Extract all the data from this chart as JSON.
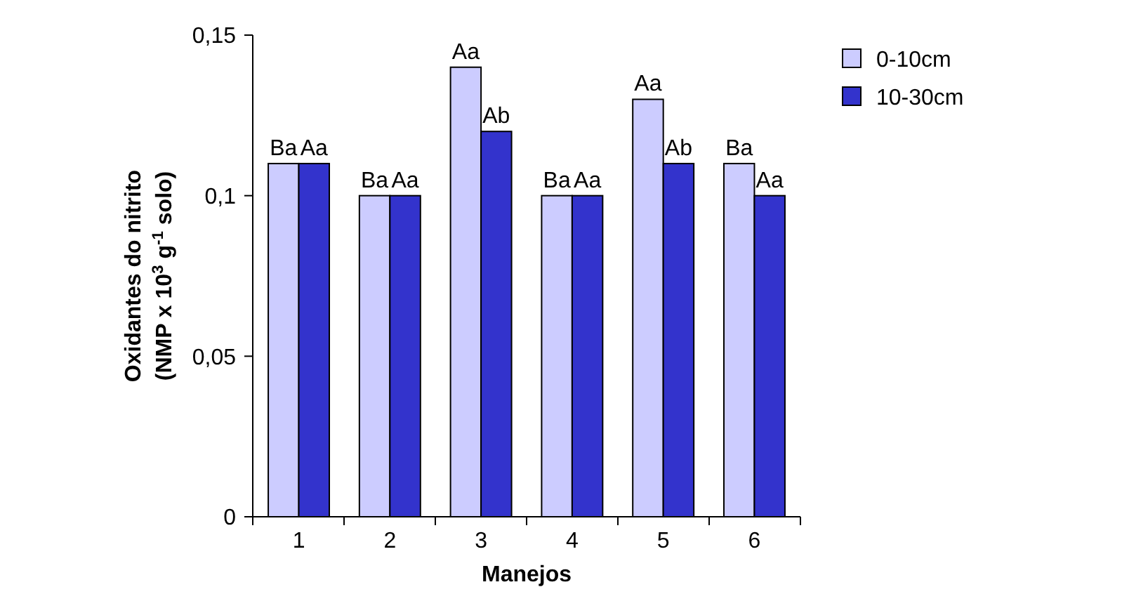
{
  "chart_data": {
    "type": "bar",
    "xlabel": "Manejos",
    "ylabel": "Oxidantes do nitrito\n(NMP x 10$^{3}$ g$^{-1}$ solo)",
    "categories": [
      "1",
      "2",
      "3",
      "4",
      "5",
      "6"
    ],
    "series": [
      {
        "name": "0-10cm",
        "color": "#ccccff",
        "values": [
          0.11,
          0.1,
          0.14,
          0.1,
          0.13,
          0.11
        ],
        "value_labels": [
          "Ba",
          "Ba",
          "Aa",
          "Ba",
          "Aa",
          "Ba"
        ]
      },
      {
        "name": "10-30cm",
        "color": "#3333cc",
        "values": [
          0.11,
          0.1,
          0.12,
          0.1,
          0.11,
          0.1
        ],
        "value_labels": [
          "Aa",
          "Aa",
          "Ab",
          "Aa",
          "Ab",
          "Aa"
        ]
      }
    ],
    "ylim": [
      0,
      0.15
    ],
    "yticks": [
      0,
      {
        "value": 0.05,
        "label": "0,05"
      },
      {
        "value": 0.1,
        "label": "0,1"
      },
      {
        "value": 0.15,
        "label": "0,15"
      }
    ],
    "grid": false,
    "legend": "right"
  }
}
